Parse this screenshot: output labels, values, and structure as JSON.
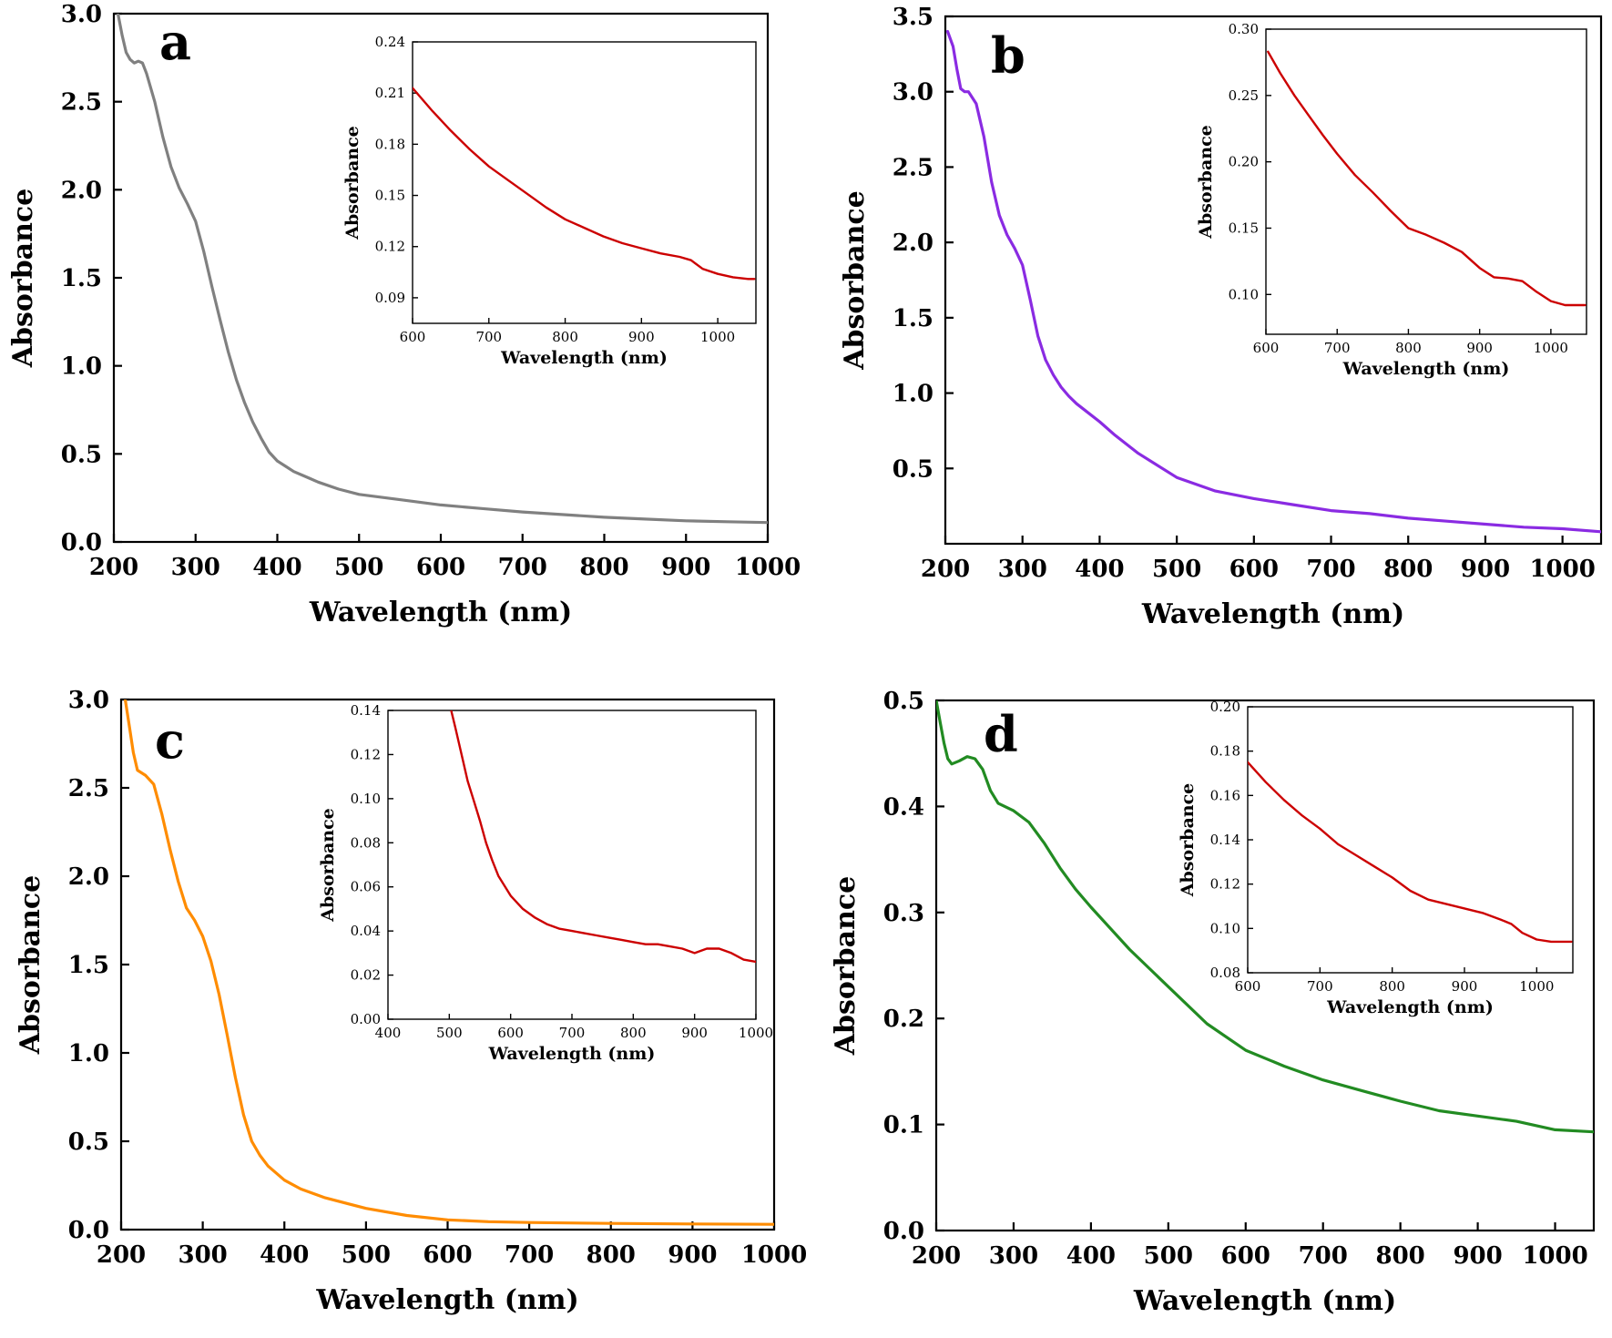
{
  "chart_data": [
    {
      "type": "line",
      "panel_label": "a",
      "xlabel": "Wavelength (nm)",
      "ylabel": "Absorbance",
      "xlim": [
        200,
        1000
      ],
      "ylim": [
        0.0,
        3.0
      ],
      "xticks": [
        200,
        300,
        400,
        500,
        600,
        700,
        800,
        900,
        1000
      ],
      "xtick_labels": [
        "200",
        "300",
        "400",
        "500",
        "600",
        "700",
        "800",
        "900",
        "1000"
      ],
      "yticks": [
        0.0,
        0.5,
        1.0,
        1.5,
        2.0,
        2.5,
        3.0
      ],
      "ytick_labels": [
        "0.0",
        "0.5",
        "1.0",
        "1.5",
        "2.0",
        "2.5",
        "3.0"
      ],
      "color": "#808080",
      "x": [
        205,
        210,
        215,
        220,
        225,
        230,
        235,
        240,
        250,
        260,
        270,
        280,
        290,
        300,
        310,
        320,
        330,
        340,
        350,
        360,
        370,
        380,
        390,
        400,
        410,
        420,
        430,
        440,
        450,
        475,
        500,
        550,
        600,
        650,
        700,
        750,
        800,
        850,
        900,
        950,
        1000
      ],
      "y": [
        3.0,
        2.88,
        2.78,
        2.74,
        2.72,
        2.73,
        2.72,
        2.66,
        2.5,
        2.3,
        2.13,
        2.01,
        1.92,
        1.82,
        1.65,
        1.45,
        1.26,
        1.08,
        0.92,
        0.79,
        0.68,
        0.59,
        0.51,
        0.46,
        0.43,
        0.4,
        0.38,
        0.36,
        0.34,
        0.3,
        0.27,
        0.24,
        0.21,
        0.19,
        0.17,
        0.155,
        0.14,
        0.13,
        0.12,
        0.115,
        0.11
      ],
      "inset": {
        "xlabel": "Wavelength (nm)",
        "ylabel": "Absorbance",
        "xlim": [
          600,
          1050
        ],
        "ylim": [
          0.075,
          0.24
        ],
        "xticks": [
          600,
          700,
          800,
          900,
          1000
        ],
        "xtick_labels": [
          "600",
          "700",
          "800",
          "900",
          "1000"
        ],
        "yticks": [
          0.09,
          0.12,
          0.15,
          0.18,
          0.21,
          0.24
        ],
        "ytick_labels": [
          "0.09",
          "0.12",
          "0.15",
          "0.18",
          "0.21",
          "0.24"
        ],
        "color": "#cc0000",
        "x": [
          600,
          625,
          650,
          675,
          700,
          725,
          750,
          775,
          800,
          825,
          850,
          875,
          900,
          925,
          950,
          965,
          980,
          1000,
          1020,
          1040,
          1048
        ],
        "y": [
          0.213,
          0.2,
          0.188,
          0.177,
          0.167,
          0.159,
          0.151,
          0.143,
          0.136,
          0.131,
          0.126,
          0.122,
          0.119,
          0.116,
          0.114,
          0.112,
          0.107,
          0.104,
          0.102,
          0.101,
          0.101
        ]
      }
    },
    {
      "type": "line",
      "panel_label": "b",
      "xlabel": "Wavelength (nm)",
      "ylabel": "Absorbance",
      "xlim": [
        200,
        1050
      ],
      "ylim": [
        0.0,
        3.5
      ],
      "xticks": [
        200,
        300,
        400,
        500,
        600,
        700,
        800,
        900,
        1000
      ],
      "xtick_labels": [
        "200",
        "300",
        "400",
        "500",
        "600",
        "700",
        "800",
        "900",
        "1000"
      ],
      "yticks": [
        0.5,
        1.0,
        1.5,
        2.0,
        2.5,
        3.0,
        3.5
      ],
      "ytick_labels": [
        "0.5",
        "1.0",
        "1.5",
        "2.0",
        "2.5",
        "3.0",
        "3.5"
      ],
      "color": "#8a2be2",
      "x": [
        203,
        210,
        215,
        220,
        225,
        230,
        240,
        250,
        260,
        270,
        280,
        290,
        300,
        310,
        320,
        330,
        340,
        350,
        360,
        370,
        380,
        400,
        420,
        450,
        500,
        550,
        600,
        650,
        700,
        750,
        800,
        850,
        900,
        950,
        1000,
        1050
      ],
      "y": [
        3.4,
        3.3,
        3.15,
        3.02,
        3.0,
        3.0,
        2.92,
        2.7,
        2.4,
        2.18,
        2.05,
        1.96,
        1.85,
        1.62,
        1.38,
        1.22,
        1.12,
        1.04,
        0.98,
        0.93,
        0.89,
        0.81,
        0.72,
        0.6,
        0.44,
        0.35,
        0.3,
        0.26,
        0.22,
        0.2,
        0.17,
        0.15,
        0.13,
        0.11,
        0.1,
        0.08
      ],
      "inset": {
        "xlabel": "Wavelength (nm)",
        "ylabel": "Absorbance",
        "xlim": [
          600,
          1050
        ],
        "ylim": [
          0.07,
          0.3
        ],
        "xticks": [
          600,
          700,
          800,
          900,
          1000
        ],
        "xtick_labels": [
          "600",
          "700",
          "800",
          "900",
          "1000"
        ],
        "yticks": [
          0.1,
          0.15,
          0.2,
          0.25,
          0.3
        ],
        "ytick_labels": [
          "0.10",
          "0.15",
          "0.20",
          "0.25",
          "0.30"
        ],
        "color": "#cc0000",
        "x": [
          603,
          620,
          640,
          660,
          680,
          700,
          725,
          750,
          775,
          800,
          825,
          850,
          875,
          900,
          920,
          940,
          960,
          980,
          1000,
          1020,
          1048
        ],
        "y": [
          0.283,
          0.267,
          0.25,
          0.235,
          0.22,
          0.206,
          0.19,
          0.177,
          0.163,
          0.15,
          0.145,
          0.139,
          0.132,
          0.12,
          0.113,
          0.112,
          0.11,
          0.102,
          0.095,
          0.092,
          0.092
        ]
      }
    },
    {
      "type": "line",
      "panel_label": "c",
      "xlabel": "Wavelength (nm)",
      "ylabel": "Absorbance",
      "xlim": [
        200,
        1000
      ],
      "ylim": [
        0.0,
        3.0
      ],
      "xticks": [
        200,
        300,
        400,
        500,
        600,
        700,
        800,
        900,
        1000
      ],
      "xtick_labels": [
        "200",
        "300",
        "400",
        "500",
        "600",
        "700",
        "800",
        "900",
        "1000"
      ],
      "yticks": [
        0.0,
        0.5,
        1.0,
        1.5,
        2.0,
        2.5,
        3.0
      ],
      "ytick_labels": [
        "0.0",
        "0.5",
        "1.0",
        "1.5",
        "2.0",
        "2.5",
        "3.0"
      ],
      "color": "#ff8c00",
      "x": [
        205,
        210,
        215,
        220,
        230,
        240,
        250,
        260,
        270,
        280,
        290,
        300,
        310,
        320,
        330,
        340,
        350,
        360,
        370,
        380,
        400,
        420,
        450,
        500,
        550,
        600,
        650,
        700,
        800,
        900,
        1000
      ],
      "y": [
        3.0,
        2.85,
        2.7,
        2.6,
        2.57,
        2.52,
        2.35,
        2.15,
        1.97,
        1.82,
        1.75,
        1.66,
        1.52,
        1.33,
        1.1,
        0.86,
        0.65,
        0.5,
        0.42,
        0.36,
        0.28,
        0.23,
        0.18,
        0.12,
        0.08,
        0.055,
        0.045,
        0.04,
        0.035,
        0.032,
        0.03
      ],
      "inset": {
        "xlabel": "Wavelength (nm)",
        "ylabel": "Absorbance",
        "xlim": [
          400,
          1000
        ],
        "ylim": [
          0.0,
          0.14
        ],
        "xticks": [
          400,
          500,
          600,
          700,
          800,
          900,
          1000
        ],
        "xtick_labels": [
          "400",
          "500",
          "600",
          "700",
          "800",
          "900",
          "1000"
        ],
        "yticks": [
          0.0,
          0.02,
          0.04,
          0.06,
          0.08,
          0.1,
          0.12,
          0.14
        ],
        "ytick_labels": [
          "0.00",
          "0.02",
          "0.04",
          "0.06",
          "0.08",
          "0.10",
          "0.12",
          "0.14"
        ],
        "color": "#cc0000",
        "x": [
          503,
          510,
          520,
          530,
          540,
          550,
          560,
          570,
          580,
          600,
          620,
          640,
          660,
          680,
          700,
          720,
          740,
          760,
          780,
          800,
          820,
          840,
          860,
          880,
          900,
          920,
          940,
          960,
          980,
          1000
        ],
        "y": [
          0.14,
          0.132,
          0.12,
          0.108,
          0.099,
          0.09,
          0.08,
          0.072,
          0.065,
          0.056,
          0.05,
          0.046,
          0.043,
          0.041,
          0.04,
          0.039,
          0.038,
          0.037,
          0.036,
          0.035,
          0.034,
          0.034,
          0.033,
          0.032,
          0.03,
          0.032,
          0.032,
          0.03,
          0.027,
          0.026
        ]
      }
    },
    {
      "type": "line",
      "panel_label": "d",
      "xlabel": "Wavelength (nm)",
      "ylabel": "Absorbance",
      "xlim": [
        200,
        1050
      ],
      "ylim": [
        0.0,
        0.5
      ],
      "xticks": [
        200,
        300,
        400,
        500,
        600,
        700,
        800,
        900,
        1000
      ],
      "xtick_labels": [
        "200",
        "300",
        "400",
        "500",
        "600",
        "700",
        "800",
        "900",
        "1000"
      ],
      "yticks": [
        0.0,
        0.1,
        0.2,
        0.3,
        0.4,
        0.5
      ],
      "ytick_labels": [
        "0.0",
        "0.1",
        "0.2",
        "0.3",
        "0.4",
        "0.5"
      ],
      "color": "#228b22",
      "x": [
        200,
        205,
        210,
        215,
        220,
        230,
        240,
        250,
        260,
        270,
        280,
        300,
        320,
        340,
        360,
        380,
        400,
        450,
        500,
        550,
        600,
        650,
        700,
        750,
        800,
        850,
        900,
        950,
        1000,
        1050
      ],
      "y": [
        0.5,
        0.48,
        0.46,
        0.445,
        0.44,
        0.443,
        0.447,
        0.445,
        0.435,
        0.415,
        0.403,
        0.396,
        0.385,
        0.365,
        0.342,
        0.322,
        0.305,
        0.265,
        0.23,
        0.195,
        0.17,
        0.155,
        0.142,
        0.132,
        0.122,
        0.113,
        0.108,
        0.103,
        0.095,
        0.093
      ],
      "inset": {
        "xlabel": "Wavelength (nm)",
        "ylabel": "Absorbance",
        "xlim": [
          600,
          1050
        ],
        "ylim": [
          0.08,
          0.2
        ],
        "xticks": [
          600,
          700,
          800,
          900,
          1000
        ],
        "xtick_labels": [
          "600",
          "700",
          "800",
          "900",
          "1000"
        ],
        "yticks": [
          0.08,
          0.1,
          0.12,
          0.14,
          0.16,
          0.18,
          0.2
        ],
        "ytick_labels": [
          "0.08",
          "0.10",
          "0.12",
          "0.14",
          "0.16",
          "0.18",
          "0.20"
        ],
        "color": "#cc0000",
        "x": [
          600,
          625,
          650,
          675,
          700,
          725,
          750,
          775,
          800,
          825,
          850,
          875,
          900,
          925,
          950,
          965,
          980,
          1000,
          1020,
          1040,
          1048
        ],
        "y": [
          0.175,
          0.166,
          0.158,
          0.151,
          0.145,
          0.138,
          0.133,
          0.128,
          0.123,
          0.117,
          0.113,
          0.111,
          0.109,
          0.107,
          0.104,
          0.102,
          0.098,
          0.095,
          0.094,
          0.094,
          0.094
        ]
      }
    }
  ]
}
